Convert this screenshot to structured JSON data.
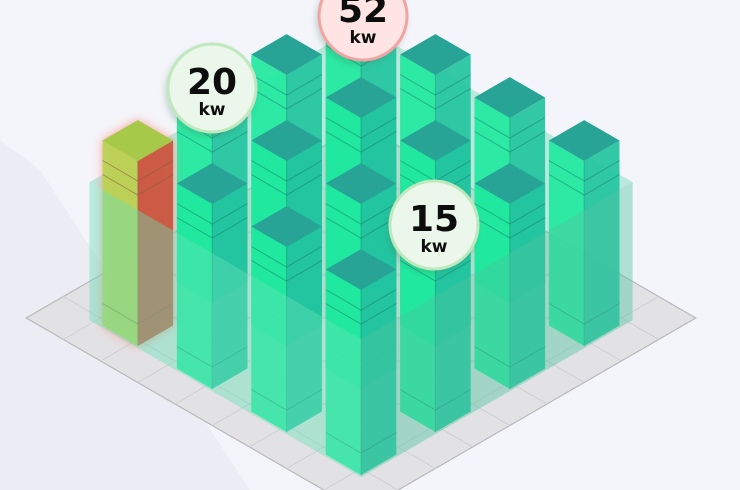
{
  "colors": {
    "background": "#f4f5fa",
    "floor": "#e2e2e4",
    "floor_line": "#b9b9bd",
    "slab_top": "#5fd3ab",
    "slab_left": "#63e0b6",
    "slab_right": "#4cc49d",
    "rack_top": "#27a496",
    "rack_left": "#1fe89e",
    "rack_right": "#22c4a0",
    "rack_line": "#15806e",
    "hot_top": "#a6c949",
    "hot_left": "#b7d553",
    "hot_right": "#c8563f",
    "hot_glow": "#ff8a80",
    "bubble_green_fill": "#eaf7ea",
    "bubble_green_ring": "#bfe8bf",
    "bubble_red_fill": "#ffe4e4",
    "bubble_red_ring": "#f3a3a3"
  },
  "racks": [
    {
      "id": "r00",
      "level": "normal"
    },
    {
      "id": "r01",
      "level": "normal"
    },
    {
      "id": "r02",
      "level": "normal"
    },
    {
      "id": "r03",
      "level": "normal"
    },
    {
      "id": "r10",
      "level": "normal"
    },
    {
      "id": "r11",
      "level": "normal"
    },
    {
      "id": "r12",
      "level": "normal"
    },
    {
      "id": "r13",
      "level": "normal"
    },
    {
      "id": "r20",
      "level": "normal"
    },
    {
      "id": "r21",
      "level": "normal"
    },
    {
      "id": "r22",
      "level": "normal"
    },
    {
      "id": "r23",
      "level": "normal"
    },
    {
      "id": "r30",
      "level": "hot"
    },
    {
      "id": "r31",
      "level": "normal"
    },
    {
      "id": "r32",
      "level": "normal"
    },
    {
      "id": "r33",
      "level": "normal"
    }
  ],
  "labels": [
    {
      "id": "hot-rack-power",
      "value": "52",
      "unit": "kw",
      "status": "alert"
    },
    {
      "id": "rack-power-left",
      "value": "20",
      "unit": "kw",
      "status": "ok"
    },
    {
      "id": "rack-power-center",
      "value": "15",
      "unit": "kw",
      "status": "ok"
    }
  ]
}
